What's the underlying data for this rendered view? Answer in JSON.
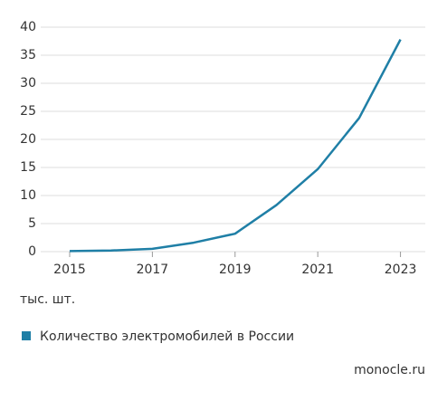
{
  "chart_data": {
    "type": "line",
    "x": [
      2015,
      2016,
      2017,
      2018,
      2019,
      2020,
      2021,
      2022,
      2023
    ],
    "series": [
      {
        "name": "Количество электромобилей в России",
        "color": "#1f7fa6",
        "values": [
          0.1,
          0.2,
          0.5,
          1.6,
          3.2,
          8.3,
          14.7,
          23.8,
          37.8
        ]
      }
    ],
    "xlim": [
      2014.3,
      2023.6
    ],
    "xticks": [
      2015,
      2017,
      2019,
      2021,
      2023
    ],
    "ylim": [
      0,
      40
    ],
    "yticks": [
      0,
      5,
      10,
      15,
      20,
      25,
      30,
      35,
      40
    ],
    "grid": true,
    "y_label": "тыс. шт.",
    "source": "monocle.ru"
  }
}
